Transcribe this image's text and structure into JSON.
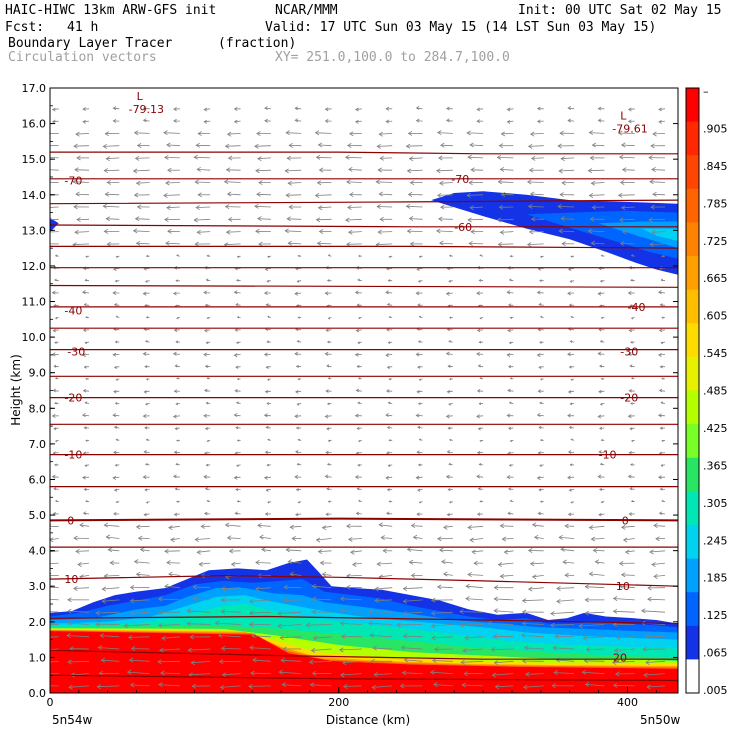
{
  "header": {
    "model": "HAIC-HIWC 13km ARW-GFS init",
    "org": "NCAR/MMM",
    "init": "Init: 00 UTC Sat 02 May 15",
    "fcst_label": "Fcst:",
    "fcst_value": "41 h",
    "valid": "Valid: 17 UTC Sun 03 May 15 (14 LST Sun 03 May 15)",
    "field": "Boundary Layer Tracer",
    "units": "(fraction)",
    "vectors": "Circulation vectors",
    "xy": "XY= 251.0,100.0 to 284.7,100.0"
  },
  "chart_data": {
    "type": "heatmap",
    "title": "Boundary Layer Tracer",
    "xlabel": "Distance (km)",
    "ylabel": "Height (km)",
    "xlim": [
      0,
      435
    ],
    "ylim": [
      0,
      17
    ],
    "x_ticks": [
      0,
      200,
      400
    ],
    "y_ticks": [
      "0.0",
      "1.0",
      "2.0",
      "3.0",
      "4.0",
      "5.0",
      "6.0",
      "7.0",
      "8.0",
      "9.0",
      "10.0",
      "11.0",
      "12.0",
      "13.0",
      "14.0",
      "15.0",
      "16.0",
      "17.0"
    ],
    "x_end_labels": {
      "left": "5n54w",
      "right": "5n50w"
    },
    "colorbar_labels": [
      "–",
      ".905",
      ".845",
      ".785",
      ".725",
      ".665",
      ".605",
      ".545",
      ".485",
      ".425",
      ".365",
      ".305",
      ".245",
      ".185",
      ".125",
      ".065",
      ".005"
    ],
    "colorbar_colors": [
      "#ff0000",
      "#ff2800",
      "#ff4600",
      "#ff6400",
      "#ff8200",
      "#ffa000",
      "#ffbe00",
      "#ffdc00",
      "#e6f000",
      "#b4ff00",
      "#78ff28",
      "#28e664",
      "#00e6b4",
      "#00d2f0",
      "#00a0ff",
      "#0064ff",
      "#1432e6",
      "#ffffff"
    ],
    "temperature_contour_color": "#8b0000",
    "temperature_labels": [
      {
        "text": "-70",
        "x": 10,
        "y": 14.4
      },
      {
        "text": "-70",
        "x": 278,
        "y": 14.45
      },
      {
        "text": "-60",
        "x": 280,
        "y": 13.1
      },
      {
        "text": "-40",
        "x": 10,
        "y": 10.75
      },
      {
        "text": "-40",
        "x": 400,
        "y": 10.85
      },
      {
        "text": "-30",
        "x": 12,
        "y": 9.6
      },
      {
        "text": "-30",
        "x": 395,
        "y": 9.6
      },
      {
        "text": "-20",
        "x": 10,
        "y": 8.3
      },
      {
        "text": "-20",
        "x": 395,
        "y": 8.3
      },
      {
        "text": "-10",
        "x": 10,
        "y": 6.7
      },
      {
        "text": "-10",
        "x": 380,
        "y": 6.7
      },
      {
        "text": "0",
        "x": 12,
        "y": 4.85
      },
      {
        "text": "0",
        "x": 396,
        "y": 4.85
      },
      {
        "text": "10",
        "x": 10,
        "y": 3.2
      },
      {
        "text": "10",
        "x": 392,
        "y": 3.0
      },
      {
        "text": "20",
        "x": 390,
        "y": 1.0
      }
    ],
    "pressure_marks": [
      {
        "letter": "L",
        "value": "-79.13",
        "x": 60,
        "y": 16.55
      },
      {
        "letter": "L",
        "value": "-79.61",
        "x": 395,
        "y": 16.0
      }
    ]
  }
}
